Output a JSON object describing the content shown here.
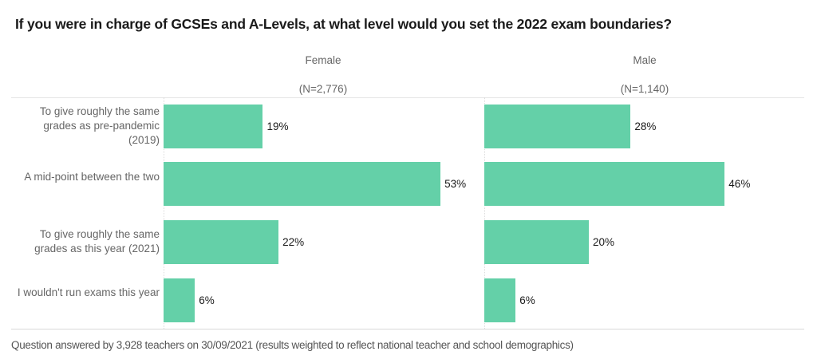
{
  "chart_data": {
    "type": "bar",
    "orientation": "horizontal",
    "title": "If you were in charge of GCSEs and A-Levels, at what level would you set the 2022 exam boundaries?",
    "categories": [
      "To give roughly the same grades as pre-pandemic (2019)",
      "A mid-point between the two",
      "To give roughly the same grades as this year (2021)",
      "I wouldn't run exams this year"
    ],
    "series": [
      {
        "name": "Female",
        "n_label": "(N=2,776)",
        "values": [
          19,
          53,
          22,
          6
        ],
        "labels": [
          "19%",
          "53%",
          "22%",
          "6%"
        ]
      },
      {
        "name": "Male",
        "n_label": "(N=1,140)",
        "values": [
          28,
          46,
          20,
          6
        ],
        "labels": [
          "28%",
          "46%",
          "20%",
          "6%"
        ]
      }
    ],
    "value_unit": "%",
    "xlim": [
      0,
      60
    ],
    "bar_color": "#64d0a8",
    "legend": "panel-headers",
    "grid": false,
    "footer": "Question answered by 3,928 teachers on 30/09/2021 (results weighted to reflect national teacher and school demographics)"
  }
}
